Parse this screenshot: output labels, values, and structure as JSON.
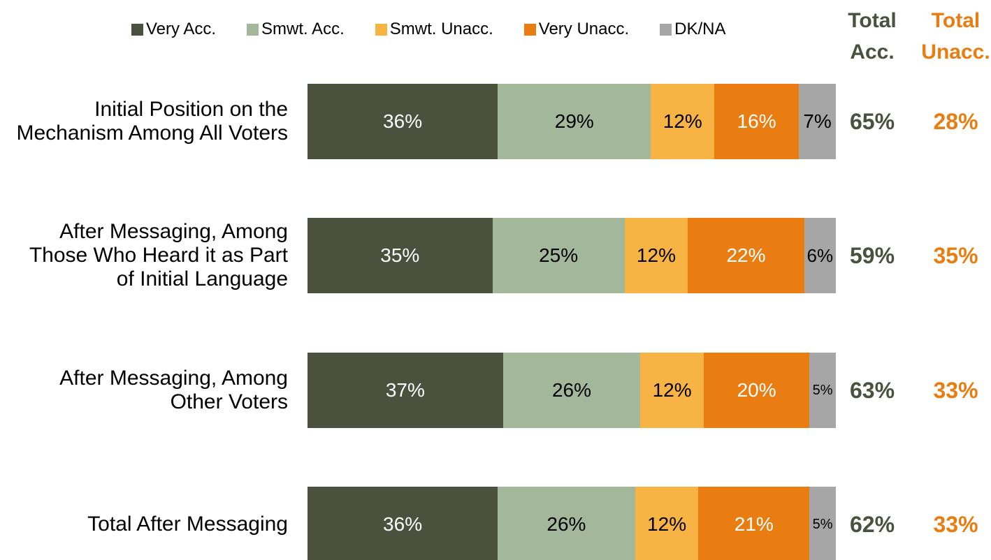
{
  "chart_data": {
    "type": "stacked-bar-horizontal",
    "categories": [
      "Initial Position on the Mechanism Among All Voters",
      "After Messaging, Among Those Who Heard it as Part of Initial Language",
      "After Messaging, Among Other Voters",
      "Total After Messaging"
    ],
    "xlim": [
      0,
      100
    ],
    "series": [
      {
        "name": "Very Acc.",
        "color": "#4a513d",
        "label_color": "#ffffff",
        "values": [
          36,
          35,
          37,
          36
        ],
        "value_labels": [
          "36%",
          "35%",
          "37%",
          "36%"
        ]
      },
      {
        "name": "Smwt. Acc.",
        "color": "#a3b79b",
        "label_color": "#000000",
        "values": [
          29,
          25,
          26,
          26
        ],
        "value_labels": [
          "29%",
          "25%",
          "26%",
          "26%"
        ]
      },
      {
        "name": "Smwt. Unacc.",
        "color": "#f7b343",
        "label_color": "#000000",
        "values": [
          12,
          12,
          12,
          12
        ],
        "value_labels": [
          "12%",
          "12%",
          "12%",
          "12%"
        ]
      },
      {
        "name": "Very Unacc.",
        "color": "#e97d12",
        "label_color": "#ffffff",
        "values": [
          16,
          22,
          20,
          21
        ],
        "value_labels": [
          "16%",
          "22%",
          "20%",
          "21%"
        ]
      },
      {
        "name": "DK/NA",
        "color": "#a6a6a6",
        "label_color": "#000000",
        "values": [
          7,
          6,
          5,
          5
        ],
        "value_labels": [
          "7%",
          "6%",
          "5%",
          "5%"
        ]
      }
    ],
    "totals": [
      {
        "name": "Total Acc.",
        "color": "#4a513d",
        "values": [
          65,
          59,
          63,
          62
        ],
        "value_labels": [
          "65%",
          "59%",
          "63%",
          "62%"
        ]
      },
      {
        "name": "Total Unacc.",
        "color": "#e97d12",
        "values": [
          28,
          35,
          33,
          33
        ],
        "value_labels": [
          "28%",
          "35%",
          "33%",
          "33%"
        ]
      }
    ]
  }
}
